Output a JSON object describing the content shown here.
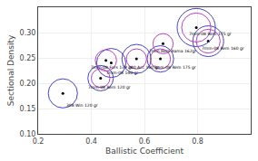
{
  "chart_data": {
    "type": "scatter",
    "xlabel": "Ballistic Coefficient",
    "ylabel": "Sectional Density",
    "xlim": [
      0.2,
      1.0
    ],
    "ylim": [
      0.1,
      0.35
    ],
    "xticks": [
      0.2,
      0.4,
      0.6,
      0.8
    ],
    "yticks": [
      {
        "value": 0.1,
        "label": "0.10"
      },
      {
        "value": 0.15,
        "label": "0.15"
      },
      {
        "value": 0.2,
        "label": "0.20"
      },
      {
        "value": 0.25,
        "label": "0.25"
      },
      {
        "value": 0.3,
        "label": "0.30"
      }
    ],
    "grid": true,
    "marker": "dot",
    "color": "#000000",
    "x": [
      0.293,
      0.435,
      0.455,
      0.475,
      0.57,
      0.66,
      0.67,
      0.795,
      0.84
    ],
    "values": [
      0.18,
      0.21,
      0.245,
      0.24,
      0.248,
      0.248,
      0.278,
      0.31,
      0.283
    ],
    "labels": [
      "308 Win 120 gr",
      "7mm-08 Rem 120 gr",
      "7mm-08 Fors 139 gr",
      "7mm-08 140 gr",
      "280 Acc 160 gr",
      "7mm-08 Rem 175 gr",
      "7mm Rem Rama 162gr",
      "7mm-08 Rem 175 gr",
      "7mm-08 Rem 160 gr"
    ],
    "label_x": [
      0.3,
      0.38,
      0.39,
      0.45,
      0.53,
      0.628,
      0.61,
      0.76,
      0.81
    ],
    "label_y": [
      0.164,
      0.2,
      0.24,
      0.228,
      0.24,
      0.24,
      0.272,
      0.305,
      0.276
    ],
    "rings": [
      {
        "color": "#4444cc",
        "radius": [
          0.055,
          0.048,
          null,
          0.055,
          0.055,
          0.05,
          null,
          0.072,
          0.058
        ]
      },
      {
        "color": "#bb44bb",
        "radius": [
          null,
          0.035,
          0.04,
          null,
          0.038,
          0.038,
          0.038,
          0.055,
          0.045
        ]
      }
    ]
  }
}
